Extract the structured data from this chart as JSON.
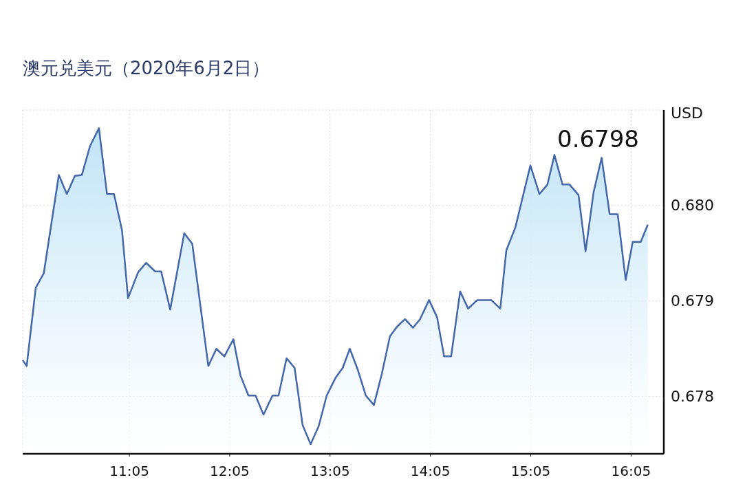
{
  "chart_data": {
    "type": "area",
    "title": "澳元兑美元（2020年6月2日）",
    "ylabel": "USD",
    "annotations": [
      "0.6798"
    ],
    "x": [
      10.02,
      10.06,
      10.15,
      10.23,
      10.38,
      10.46,
      10.54,
      10.61,
      10.69,
      10.78,
      10.86,
      10.93,
      11.01,
      11.07,
      11.17,
      11.25,
      11.34,
      11.4,
      11.49,
      11.63,
      11.71,
      11.87,
      11.95,
      12.03,
      12.12,
      12.19,
      12.27,
      12.34,
      12.42,
      12.51,
      12.57,
      12.65,
      12.73,
      12.81,
      12.89,
      12.97,
      13.05,
      13.14,
      13.21,
      13.28,
      13.36,
      13.44,
      13.52,
      13.6,
      13.68,
      13.75,
      13.83,
      13.91,
      13.98,
      14.07,
      14.15,
      14.22,
      14.29,
      14.38,
      14.46,
      14.55,
      14.69,
      14.78,
      14.84,
      14.93,
      15.08,
      15.17,
      15.25,
      15.32,
      15.4,
      15.47,
      15.56,
      15.63,
      15.71,
      15.79,
      15.87,
      15.95,
      16.03,
      16.1,
      16.18,
      16.25
    ],
    "series": [
      {
        "color": "#4466aa",
        "values": [
          0.67838,
          0.67832,
          0.67914,
          0.67929,
          0.68032,
          0.68012,
          0.68031,
          0.68032,
          0.68062,
          0.68081,
          0.68012,
          0.68012,
          0.67974,
          0.67903,
          0.6793,
          0.6794,
          0.67931,
          0.67931,
          0.67891,
          0.67971,
          0.6796,
          0.67832,
          0.6785,
          0.67842,
          0.6786,
          0.67822,
          0.67801,
          0.67801,
          0.67781,
          0.67801,
          0.67801,
          0.6784,
          0.6783,
          0.6777,
          0.6775,
          0.67769,
          0.67801,
          0.6782,
          0.6783,
          0.6785,
          0.67828,
          0.67801,
          0.67791,
          0.67824,
          0.67863,
          0.67873,
          0.67881,
          0.67872,
          0.67881,
          0.67901,
          0.67883,
          0.67842,
          0.67842,
          0.6791,
          0.67892,
          0.67901,
          0.67901,
          0.67892,
          0.67953,
          0.67977,
          0.68042,
          0.68012,
          0.68022,
          0.68053,
          0.68022,
          0.68022,
          0.68011,
          0.67952,
          0.68014,
          0.6805,
          0.67991,
          0.67991,
          0.67922,
          0.67962,
          0.67962,
          0.6798
        ]
      }
    ],
    "xlim": [
      10.02,
      16.41
    ],
    "xticks": [
      {
        "value": 11.0833,
        "label": "11:05"
      },
      {
        "value": 12.0833,
        "label": "12:05"
      },
      {
        "value": 13.0833,
        "label": "13:05"
      },
      {
        "value": 14.0833,
        "label": "14:05"
      },
      {
        "value": 15.0833,
        "label": "15:05"
      },
      {
        "value": 16.0833,
        "label": "16:05"
      }
    ],
    "ylim": [
      0.6774,
      0.681
    ],
    "yticks": [
      0.678,
      0.679,
      {
        "value": 0.68,
        "label": "0.680"
      },
      {
        "value": 0.681,
        "label": null
      }
    ],
    "grid": true
  }
}
